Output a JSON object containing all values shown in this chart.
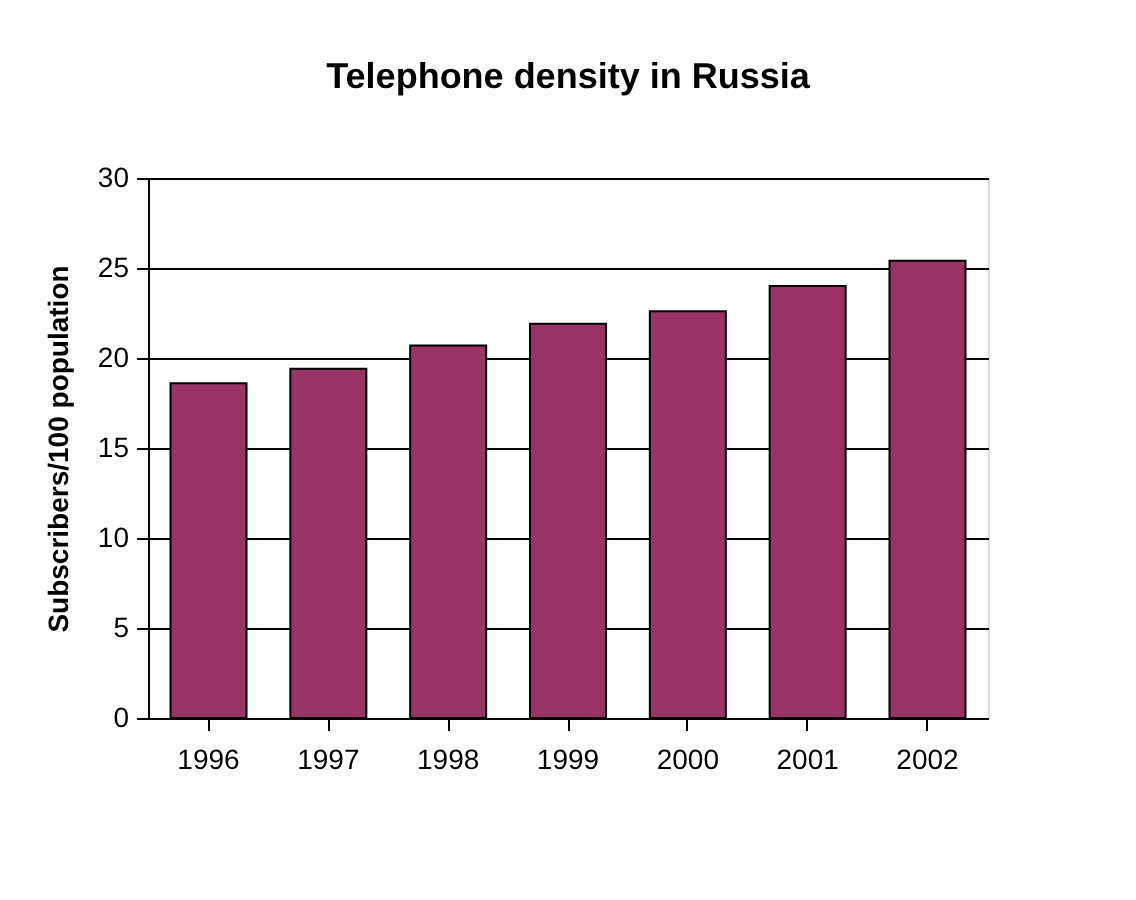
{
  "chart_data": {
    "type": "bar",
    "title": "Telephone density in Russia",
    "ylabel": "Subscribers/100 population",
    "categories": [
      "1996",
      "1997",
      "1998",
      "1999",
      "2000",
      "2001",
      "2002"
    ],
    "values": [
      18.6,
      19.4,
      20.7,
      21.9,
      22.6,
      24.0,
      25.4
    ],
    "color": "#993366",
    "ylim": [
      0,
      30
    ],
    "yticks": [
      0,
      5,
      10,
      15,
      20,
      25,
      30
    ],
    "grid": "y"
  }
}
